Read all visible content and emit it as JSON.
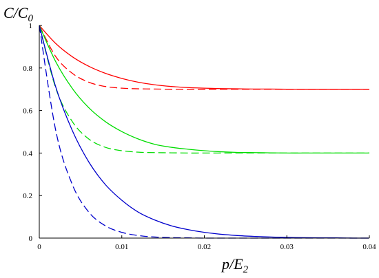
{
  "chart_data": {
    "type": "line",
    "xlabel": "p/E",
    "xlabel_sub": "2",
    "ylabel": "C/C",
    "ylabel_sub": "0",
    "xlim": [
      0,
      0.04
    ],
    "ylim": [
      0,
      1
    ],
    "grid": false,
    "x_ticks": [
      {
        "value": 0,
        "label": "0"
      },
      {
        "value": 0.01,
        "label": "0.01"
      },
      {
        "value": 0.02,
        "label": "0.02"
      },
      {
        "value": 0.03,
        "label": "0.03"
      },
      {
        "value": 0.04,
        "label": "0.04"
      }
    ],
    "y_ticks": [
      {
        "value": 0,
        "label": "0"
      },
      {
        "value": 0.2,
        "label": "0.2"
      },
      {
        "value": 0.4,
        "label": "0.4"
      },
      {
        "value": 0.6,
        "label": "0.6"
      },
      {
        "value": 0.8,
        "label": "0.8"
      },
      {
        "value": 1,
        "label": "1"
      }
    ],
    "x": [
      0,
      0.002,
      0.004,
      0.006,
      0.008,
      0.01,
      0.012,
      0.014,
      0.016,
      0.018,
      0.02,
      0.022,
      0.024,
      0.026,
      0.028,
      0.03,
      0.032,
      0.034,
      0.036,
      0.038,
      0.04
    ],
    "series": [
      {
        "color": "#ff0000",
        "dash": "solid",
        "values": [
          1.0,
          0.915,
          0.853,
          0.808,
          0.775,
          0.751,
          0.733,
          0.721,
          0.713,
          0.708,
          0.705,
          0.703,
          0.702,
          0.701,
          0.701,
          0.7,
          0.7,
          0.7,
          0.7,
          0.7,
          0.7
        ]
      },
      {
        "color": "#ff0000",
        "dash": "dashed",
        "values": [
          1.0,
          0.853,
          0.775,
          0.733,
          0.713,
          0.705,
          0.702,
          0.701,
          0.7,
          0.7,
          0.7,
          0.7,
          0.7,
          0.7,
          0.7,
          0.7,
          0.7,
          0.7,
          0.7,
          0.7,
          0.7
        ]
      },
      {
        "color": "#00dd00",
        "dash": "solid",
        "values": [
          1.0,
          0.829,
          0.704,
          0.613,
          0.548,
          0.501,
          0.466,
          0.441,
          0.427,
          0.418,
          0.411,
          0.406,
          0.403,
          0.402,
          0.401,
          0.4,
          0.4,
          0.4,
          0.4,
          0.4,
          0.4
        ]
      },
      {
        "color": "#00dd00",
        "dash": "dashed",
        "values": [
          1.0,
          0.705,
          0.548,
          0.466,
          0.427,
          0.411,
          0.404,
          0.402,
          0.401,
          0.4,
          0.4,
          0.4,
          0.4,
          0.4,
          0.4,
          0.4,
          0.4,
          0.4,
          0.4,
          0.4,
          0.4
        ]
      },
      {
        "color": "#0000cc",
        "dash": "solid",
        "values": [
          1.0,
          0.71,
          0.506,
          0.358,
          0.252,
          0.178,
          0.122,
          0.085,
          0.058,
          0.04,
          0.027,
          0.018,
          0.012,
          0.008,
          0.005,
          0.003,
          0.002,
          0.001,
          0.001,
          0.0,
          0.0
        ]
      },
      {
        "color": "#0000cc",
        "dash": "dashed",
        "values": [
          1.0,
          0.505,
          0.252,
          0.122,
          0.058,
          0.027,
          0.012,
          0.005,
          0.002,
          0.001,
          0.0,
          0.0,
          0.0,
          0.0,
          0.0,
          0.0,
          0.0,
          0.0,
          0.0,
          0.0,
          0.0
        ]
      }
    ]
  }
}
